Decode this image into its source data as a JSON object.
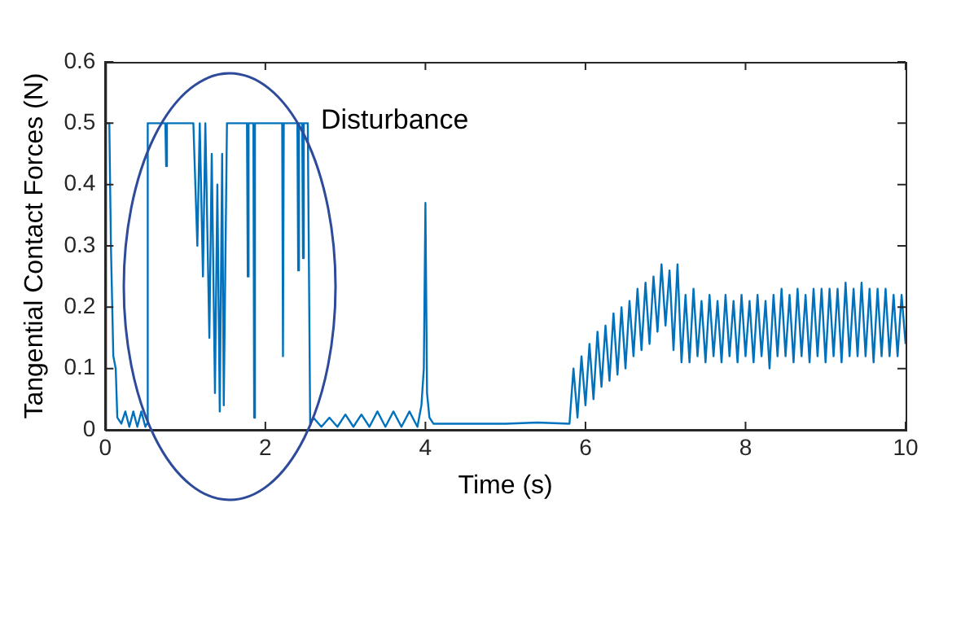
{
  "chart_data": {
    "type": "line",
    "xlabel": "Time (s)",
    "ylabel": "Tangential Contact Forces (N)",
    "annotations": [
      "Disturbance"
    ],
    "xlim": [
      0,
      10
    ],
    "xticks": [
      0,
      2,
      4,
      6,
      8,
      10
    ],
    "ylim": [
      0,
      0.6
    ],
    "yticks": [
      0,
      0.1,
      0.2,
      0.3,
      0.4,
      0.5,
      0.6
    ],
    "grid": false,
    "legend": false,
    "marker": "none",
    "line_style": "solid",
    "series": [
      {
        "color": "#0072bd",
        "x": [
          0,
          0.05,
          0.07,
          0.1,
          0.13,
          0.15,
          0.2,
          0.25,
          0.3,
          0.35,
          0.4,
          0.45,
          0.5,
          0.52,
          0.53,
          0.75,
          0.76,
          0.77,
          1.1,
          1.15,
          1.18,
          1.22,
          1.25,
          1.3,
          1.33,
          1.37,
          1.4,
          1.43,
          1.46,
          1.48,
          1.52,
          1.77,
          1.78,
          1.79,
          1.85,
          1.86,
          1.87,
          2.21,
          2.22,
          2.23,
          2.4,
          2.41,
          2.42,
          2.46,
          2.47,
          2.48,
          2.53,
          2.56,
          2.6,
          2.7,
          2.8,
          2.9,
          3.0,
          3.1,
          3.2,
          3.3,
          3.4,
          3.5,
          3.6,
          3.7,
          3.8,
          3.9,
          3.95,
          3.98,
          4.0,
          4.02,
          4.05,
          4.1,
          4.3,
          4.6,
          5.0,
          5.4,
          5.8,
          5.85,
          5.9,
          5.95,
          6.0,
          6.05,
          6.1,
          6.15,
          6.2,
          6.25,
          6.3,
          6.35,
          6.4,
          6.45,
          6.5,
          6.55,
          6.6,
          6.65,
          6.7,
          6.75,
          6.8,
          6.85,
          6.9,
          6.95,
          7.0,
          7.05,
          7.1,
          7.15,
          7.2,
          7.25,
          7.3,
          7.35,
          7.4,
          7.45,
          7.5,
          7.55,
          7.6,
          7.65,
          7.7,
          7.75,
          7.8,
          7.85,
          7.9,
          7.95,
          8.0,
          8.05,
          8.1,
          8.15,
          8.2,
          8.25,
          8.3,
          8.35,
          8.4,
          8.45,
          8.5,
          8.55,
          8.6,
          8.65,
          8.7,
          8.75,
          8.8,
          8.85,
          8.9,
          8.95,
          9.0,
          9.05,
          9.1,
          9.15,
          9.2,
          9.25,
          9.3,
          9.35,
          9.4,
          9.45,
          9.5,
          9.55,
          9.6,
          9.65,
          9.7,
          9.75,
          9.8,
          9.85,
          9.9,
          9.95,
          10.0
        ],
        "values": [
          0.5,
          0.5,
          0.3,
          0.12,
          0.1,
          0.02,
          0.01,
          0.03,
          0.005,
          0.03,
          0.005,
          0.03,
          0.005,
          0.01,
          0.5,
          0.5,
          0.43,
          0.5,
          0.5,
          0.3,
          0.5,
          0.25,
          0.5,
          0.15,
          0.45,
          0.06,
          0.4,
          0.03,
          0.45,
          0.04,
          0.5,
          0.5,
          0.25,
          0.5,
          0.5,
          0.02,
          0.5,
          0.5,
          0.12,
          0.5,
          0.5,
          0.26,
          0.5,
          0.5,
          0.28,
          0.5,
          0.5,
          0.01,
          0.02,
          0.005,
          0.02,
          0.005,
          0.025,
          0.005,
          0.025,
          0.005,
          0.03,
          0.005,
          0.03,
          0.005,
          0.03,
          0.005,
          0.04,
          0.1,
          0.37,
          0.06,
          0.02,
          0.01,
          0.01,
          0.01,
          0.01,
          0.012,
          0.01,
          0.1,
          0.02,
          0.12,
          0.04,
          0.14,
          0.05,
          0.16,
          0.07,
          0.17,
          0.08,
          0.19,
          0.09,
          0.2,
          0.1,
          0.21,
          0.12,
          0.23,
          0.13,
          0.24,
          0.14,
          0.25,
          0.16,
          0.27,
          0.17,
          0.26,
          0.13,
          0.27,
          0.11,
          0.22,
          0.11,
          0.23,
          0.12,
          0.21,
          0.11,
          0.22,
          0.12,
          0.21,
          0.11,
          0.22,
          0.12,
          0.21,
          0.11,
          0.22,
          0.12,
          0.21,
          0.11,
          0.22,
          0.12,
          0.21,
          0.1,
          0.22,
          0.12,
          0.23,
          0.12,
          0.22,
          0.11,
          0.23,
          0.12,
          0.22,
          0.11,
          0.23,
          0.12,
          0.23,
          0.11,
          0.23,
          0.12,
          0.23,
          0.11,
          0.24,
          0.12,
          0.23,
          0.12,
          0.24,
          0.12,
          0.23,
          0.11,
          0.23,
          0.12,
          0.23,
          0.12,
          0.22,
          0.12,
          0.22,
          0.14
        ]
      }
    ]
  }
}
